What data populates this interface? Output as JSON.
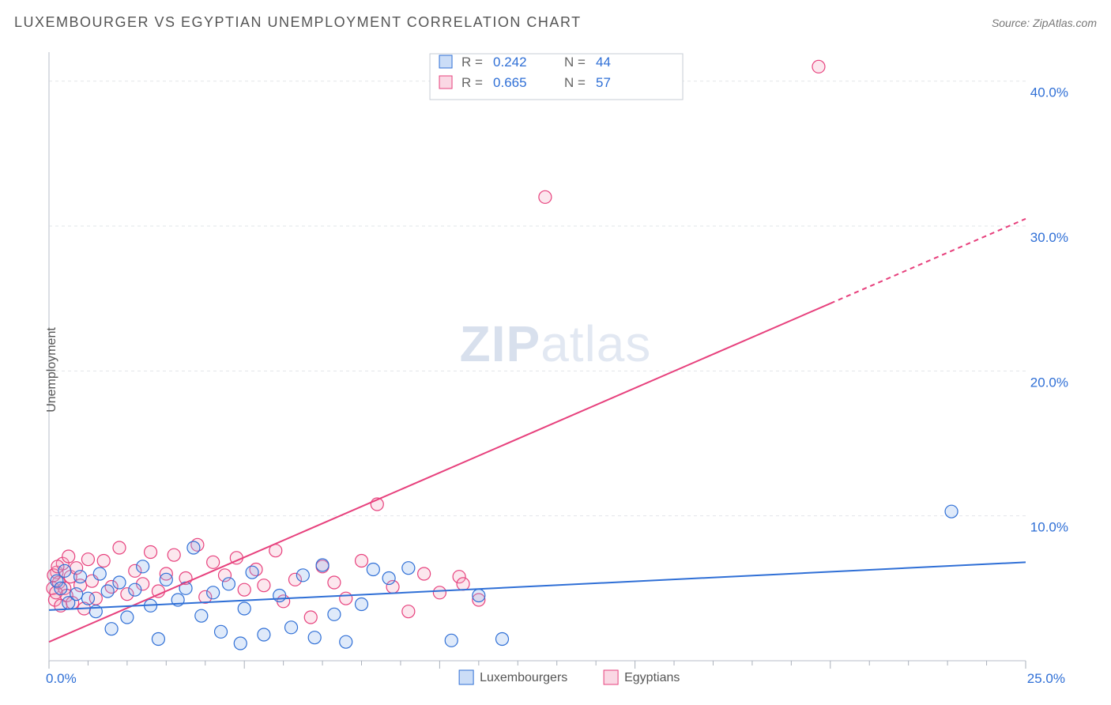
{
  "chart": {
    "type": "scatter",
    "title": "LUXEMBOURGER VS EGYPTIAN UNEMPLOYMENT CORRELATION CHART",
    "source_label": "Source: ZipAtlas.com",
    "ylabel": "Unemployment",
    "watermark": {
      "prefix": "ZIP",
      "suffix": "atlas"
    },
    "plot_bg": "#ffffff",
    "grid_color": "#e2e5ea",
    "axis_color": "#cfd4db",
    "tick_color": "#aab0bb",
    "ytick_label_color": "#2f6fd6",
    "xtick_label_color": "#2f6fd6",
    "text_color": "#666666",
    "xlim": [
      0,
      25
    ],
    "ylim": [
      0,
      42
    ],
    "y_gridlines": [
      10,
      20,
      30,
      40
    ],
    "y_gridline_dash": "4 4",
    "y_ticklabels": [
      "10.0%",
      "20.0%",
      "30.0%",
      "40.0%"
    ],
    "x_ticks_major_step": 5,
    "x_ticks_minor_step": 1,
    "x_origin_label": "0.0%",
    "x_end_label": "25.0%",
    "marker_radius": 8,
    "marker_stroke_width": 1.2,
    "marker_fill_opacity": 0.28,
    "line_width": 2,
    "trend_dash_extension": "6 5",
    "series": {
      "blue": {
        "label": "Luxembourgers",
        "color": "#2f6fd6",
        "fill": "#8bb4ee",
        "R": "0.242",
        "N": "44",
        "trend": {
          "x1": 0,
          "y1": 3.5,
          "x2": 25,
          "y2": 6.8,
          "dash_from_x": null
        },
        "points": [
          [
            0.2,
            5.5
          ],
          [
            0.3,
            5.0
          ],
          [
            0.4,
            6.2
          ],
          [
            0.5,
            4.0
          ],
          [
            0.7,
            4.6
          ],
          [
            0.8,
            5.8
          ],
          [
            1.0,
            4.3
          ],
          [
            1.2,
            3.4
          ],
          [
            1.3,
            6.0
          ],
          [
            1.5,
            4.8
          ],
          [
            1.6,
            2.2
          ],
          [
            1.8,
            5.4
          ],
          [
            2.0,
            3.0
          ],
          [
            2.2,
            4.9
          ],
          [
            2.4,
            6.5
          ],
          [
            2.6,
            3.8
          ],
          [
            2.8,
            1.5
          ],
          [
            3.0,
            5.6
          ],
          [
            3.3,
            4.2
          ],
          [
            3.5,
            5.0
          ],
          [
            3.7,
            7.8
          ],
          [
            3.9,
            3.1
          ],
          [
            4.2,
            4.7
          ],
          [
            4.4,
            2.0
          ],
          [
            4.6,
            5.3
          ],
          [
            5.0,
            3.6
          ],
          [
            5.2,
            6.1
          ],
          [
            5.5,
            1.8
          ],
          [
            5.9,
            4.5
          ],
          [
            6.2,
            2.3
          ],
          [
            6.5,
            5.9
          ],
          [
            6.8,
            1.6
          ],
          [
            7.0,
            6.6
          ],
          [
            7.3,
            3.2
          ],
          [
            7.6,
            1.3
          ],
          [
            8.0,
            3.9
          ],
          [
            8.3,
            6.3
          ],
          [
            8.7,
            5.7
          ],
          [
            9.2,
            6.4
          ],
          [
            10.3,
            1.4
          ],
          [
            11.0,
            4.5
          ],
          [
            11.6,
            1.5
          ],
          [
            23.1,
            10.3
          ],
          [
            4.9,
            1.2
          ]
        ]
      },
      "pink": {
        "label": "Egyptians",
        "color": "#e7417d",
        "fill": "#f5a8c3",
        "R": "0.665",
        "N": "57",
        "trend": {
          "x1": 0,
          "y1": 1.3,
          "x2": 25,
          "y2": 30.5,
          "dash_from_x": 20
        },
        "points": [
          [
            0.1,
            5.0
          ],
          [
            0.15,
            4.2
          ],
          [
            0.2,
            6.1
          ],
          [
            0.25,
            5.4
          ],
          [
            0.3,
            3.8
          ],
          [
            0.35,
            6.7
          ],
          [
            0.4,
            5.0
          ],
          [
            0.45,
            4.5
          ],
          [
            0.5,
            7.2
          ],
          [
            0.55,
            5.8
          ],
          [
            0.6,
            4.0
          ],
          [
            0.7,
            6.4
          ],
          [
            0.8,
            5.2
          ],
          [
            0.9,
            3.6
          ],
          [
            1.0,
            7.0
          ],
          [
            1.1,
            5.5
          ],
          [
            1.2,
            4.3
          ],
          [
            1.4,
            6.9
          ],
          [
            1.6,
            5.1
          ],
          [
            1.8,
            7.8
          ],
          [
            2.0,
            4.6
          ],
          [
            2.2,
            6.2
          ],
          [
            2.4,
            5.3
          ],
          [
            2.6,
            7.5
          ],
          [
            2.8,
            4.8
          ],
          [
            3.0,
            6.0
          ],
          [
            3.2,
            7.3
          ],
          [
            3.5,
            5.7
          ],
          [
            3.8,
            8.0
          ],
          [
            4.0,
            4.4
          ],
          [
            4.2,
            6.8
          ],
          [
            4.5,
            5.9
          ],
          [
            4.8,
            7.1
          ],
          [
            5.0,
            4.9
          ],
          [
            5.3,
            6.3
          ],
          [
            5.5,
            5.2
          ],
          [
            5.8,
            7.6
          ],
          [
            6.0,
            4.1
          ],
          [
            6.3,
            5.6
          ],
          [
            6.7,
            3.0
          ],
          [
            7.0,
            6.5
          ],
          [
            7.3,
            5.4
          ],
          [
            7.6,
            4.3
          ],
          [
            8.0,
            6.9
          ],
          [
            8.4,
            10.8
          ],
          [
            8.8,
            5.1
          ],
          [
            9.2,
            3.4
          ],
          [
            9.6,
            6.0
          ],
          [
            10.0,
            4.7
          ],
          [
            10.5,
            5.8
          ],
          [
            10.6,
            5.3
          ],
          [
            11.0,
            4.2
          ],
          [
            12.7,
            32.0
          ],
          [
            19.7,
            41.0
          ],
          [
            0.12,
            5.9
          ],
          [
            0.18,
            4.7
          ],
          [
            0.22,
            6.5
          ]
        ]
      }
    },
    "legend_box": {
      "border_color": "#c7ccd4",
      "bg": "#ffffff",
      "swatch_size": 16
    },
    "bottom_legend": {
      "swatch_size": 18
    }
  }
}
